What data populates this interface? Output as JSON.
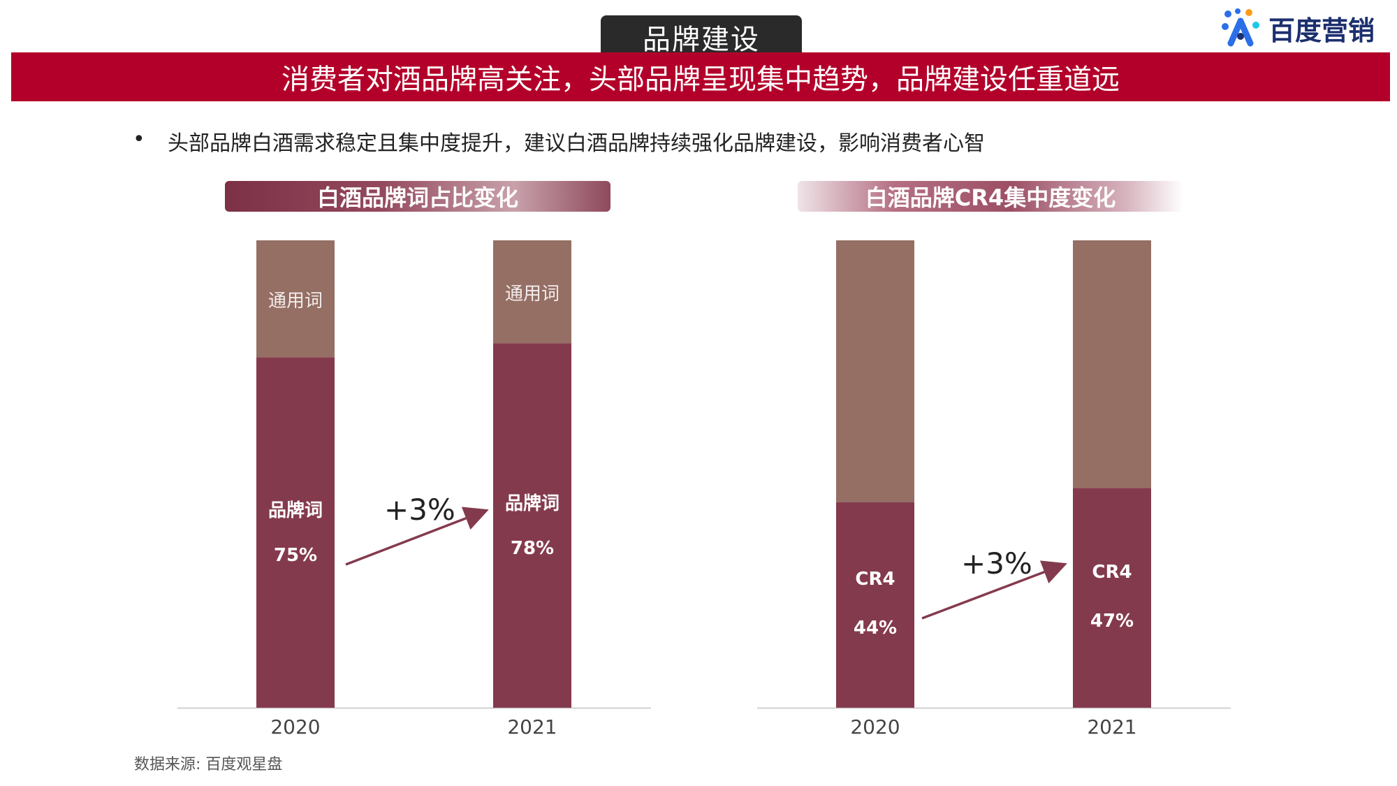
{
  "header": {
    "tab_title": "品牌建设",
    "banner_title": "消费者对酒品牌高关注，头部品牌呈现集中趋势，品牌建设任重道远",
    "logo_text": "百度营销",
    "logo_icon": "baidu-marketing-logo-icon"
  },
  "statement": {
    "bullet": "•",
    "text": "头部品牌白酒需求稳定且集中度提升，建议白酒品牌持续强化品牌建设，影响消费者心智"
  },
  "source": "数据来源: 百度观星盘",
  "colors": {
    "bar_bottom": "#843a4d",
    "bar_top": "#956f64",
    "arrow": "#843a4d",
    "banner": "#b3002a"
  },
  "chart_data": [
    {
      "type": "bar",
      "stacked": true,
      "title": "白酒品牌词占比变化",
      "categories": [
        "2020",
        "2021"
      ],
      "ylim": [
        0,
        100
      ],
      "series": [
        {
          "name": "品牌词",
          "values": [
            75,
            78
          ],
          "labels": [
            "75%",
            "78%"
          ]
        },
        {
          "name": "通用词",
          "values": [
            25,
            22
          ]
        }
      ],
      "annotation": "+3%"
    },
    {
      "type": "bar",
      "stacked": true,
      "title": "白酒品牌CR4集中度变化",
      "categories": [
        "2020",
        "2021"
      ],
      "ylim": [
        0,
        100
      ],
      "series": [
        {
          "name": "CR4",
          "values": [
            44,
            47
          ],
          "labels": [
            "44%",
            "47%"
          ]
        },
        {
          "name": "",
          "values": [
            56,
            53
          ]
        }
      ],
      "annotation": "+3%"
    }
  ]
}
